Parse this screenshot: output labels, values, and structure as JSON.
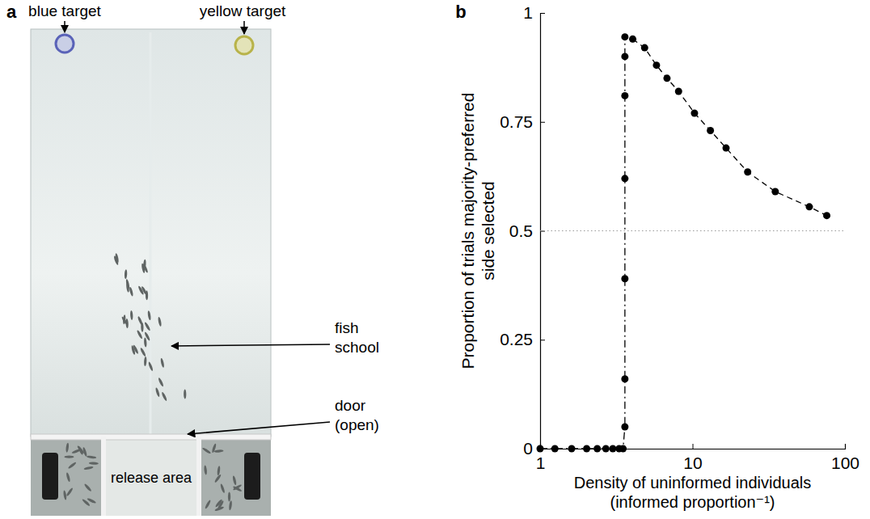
{
  "figure_a": {
    "panel": "a",
    "blue_target": "blue target",
    "yellow_target": "yellow target",
    "fish_school": [
      "fish",
      "school"
    ],
    "door": [
      "door",
      "(open)"
    ],
    "release_area": "release area"
  },
  "chart_data": {
    "type": "line",
    "panel": "b",
    "xlabel": [
      "Density of uninformed individuals",
      "(informed proportion⁻¹)"
    ],
    "ylabel": [
      "Proportion of trials majority-preferred",
      "side selected"
    ],
    "log": "x",
    "xlim": [
      1,
      100
    ],
    "xticks": [
      1,
      10,
      100
    ],
    "ylim": [
      0,
      1
    ],
    "yticks": [
      0,
      0.25,
      0.5,
      0.75,
      1
    ],
    "reference_y": 0.5,
    "series": [
      {
        "color": "#000000",
        "marker": "circle",
        "line_style": "dashdot",
        "x": [
          1.0,
          1.25,
          1.61,
          2.02,
          2.37,
          2.7,
          3.0,
          3.3,
          3.5,
          3.6,
          3.6,
          3.6,
          3.6,
          3.6,
          3.6,
          3.6
        ],
        "values": [
          0,
          0,
          0,
          0,
          0,
          0,
          0,
          0,
          0,
          0.05,
          0.16,
          0.39,
          0.62,
          0.81,
          0.9,
          0.945
        ]
      },
      {
        "color": "#000000",
        "marker": "circle",
        "line_style": "dashed",
        "x": [
          4.05,
          4.85,
          5.8,
          6.8,
          8.1,
          10.3,
          13.1,
          16.6,
          23,
          34.9,
          58.4,
          76
        ],
        "values": [
          0.94,
          0.92,
          0.88,
          0.85,
          0.82,
          0.77,
          0.73,
          0.69,
          0.635,
          0.59,
          0.555,
          0.535
        ]
      }
    ]
  }
}
